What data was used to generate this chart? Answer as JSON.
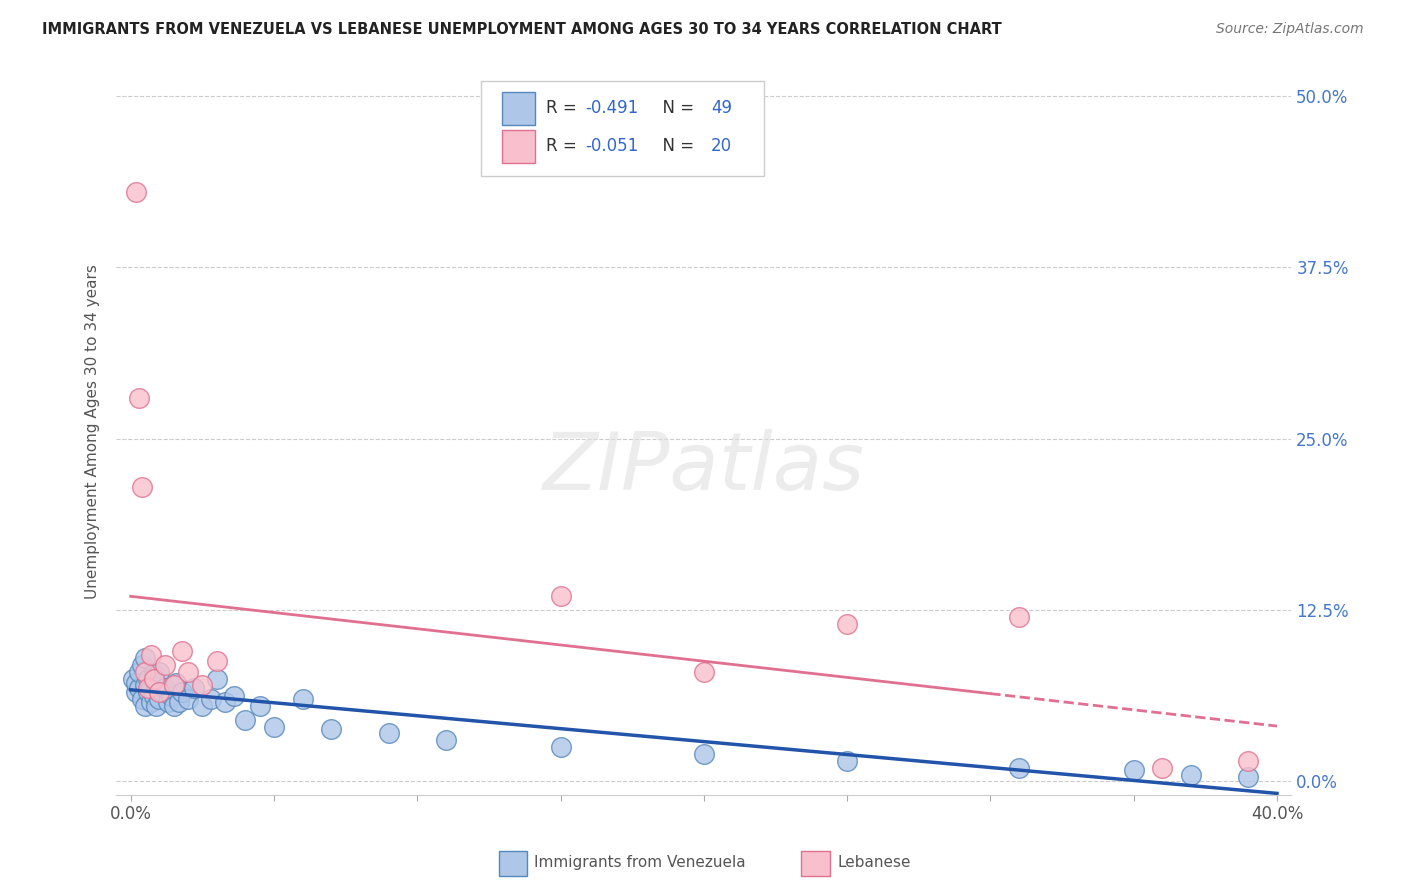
{
  "title": "IMMIGRANTS FROM VENEZUELA VS LEBANESE UNEMPLOYMENT AMONG AGES 30 TO 34 YEARS CORRELATION CHART",
  "source": "Source: ZipAtlas.com",
  "ylabel": "Unemployment Among Ages 30 to 34 years",
  "xlim": [
    0.0,
    0.4
  ],
  "ylim": [
    0.0,
    0.5
  ],
  "xtick_left_label": "0.0%",
  "xtick_right_label": "40.0%",
  "yticks_right": [
    0.0,
    0.125,
    0.25,
    0.375,
    0.5
  ],
  "ytick_labels_right": [
    "0.0%",
    "12.5%",
    "25.0%",
    "37.5%",
    "50.0%"
  ],
  "blue_color": "#aec6e8",
  "blue_edge": "#5588bb",
  "pink_color": "#f8c0cc",
  "pink_edge": "#e07090",
  "trend_blue": "#2255aa",
  "trend_pink": "#e07090",
  "R_blue": -0.491,
  "N_blue": 49,
  "R_pink": -0.051,
  "N_pink": 20,
  "watermark": "ZIPatlas",
  "blue_x": [
    0.001,
    0.002,
    0.002,
    0.003,
    0.003,
    0.004,
    0.004,
    0.005,
    0.005,
    0.005,
    0.006,
    0.006,
    0.007,
    0.007,
    0.008,
    0.008,
    0.009,
    0.009,
    0.01,
    0.01,
    0.011,
    0.012,
    0.013,
    0.014,
    0.015,
    0.016,
    0.017,
    0.018,
    0.02,
    0.022,
    0.025,
    0.028,
    0.03,
    0.033,
    0.036,
    0.04,
    0.045,
    0.05,
    0.06,
    0.07,
    0.09,
    0.11,
    0.15,
    0.2,
    0.25,
    0.31,
    0.35,
    0.37,
    0.39
  ],
  "blue_y": [
    0.075,
    0.065,
    0.072,
    0.068,
    0.08,
    0.06,
    0.085,
    0.055,
    0.07,
    0.09,
    0.065,
    0.075,
    0.058,
    0.068,
    0.062,
    0.078,
    0.055,
    0.072,
    0.06,
    0.08,
    0.065,
    0.068,
    0.058,
    0.062,
    0.055,
    0.072,
    0.058,
    0.065,
    0.06,
    0.068,
    0.055,
    0.06,
    0.075,
    0.058,
    0.062,
    0.045,
    0.055,
    0.04,
    0.06,
    0.038,
    0.035,
    0.03,
    0.025,
    0.02,
    0.015,
    0.01,
    0.008,
    0.005,
    0.003
  ],
  "pink_x": [
    0.002,
    0.003,
    0.004,
    0.005,
    0.006,
    0.007,
    0.008,
    0.01,
    0.012,
    0.015,
    0.018,
    0.02,
    0.025,
    0.03,
    0.15,
    0.2,
    0.25,
    0.31,
    0.36,
    0.39
  ],
  "pink_y": [
    0.43,
    0.28,
    0.215,
    0.08,
    0.068,
    0.092,
    0.075,
    0.065,
    0.085,
    0.07,
    0.095,
    0.08,
    0.07,
    0.088,
    0.135,
    0.08,
    0.115,
    0.12,
    0.01,
    0.015
  ]
}
